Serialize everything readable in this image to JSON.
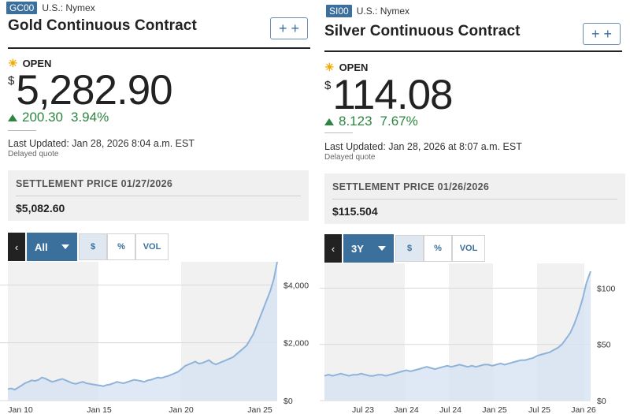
{
  "colors": {
    "accent": "#3b6f9c",
    "up": "#2e8540",
    "line": "#8fb3d9",
    "fill": "#d6e4f2",
    "band": "#f1f1f1"
  },
  "panels": [
    {
      "ticker": "GC00",
      "exchange": "U.S.: Nymex",
      "title": "Gold Continuous Contract",
      "add_button": "+ +",
      "status_icon": "sun-icon",
      "status": "OPEN",
      "currency": "$",
      "price": "5,282.90",
      "change": "200.30",
      "change_pct": "3.94%",
      "updated": "Last Updated: Jan 28, 2026 8:04 a.m. EST",
      "delayed": "Delayed quote",
      "settlement_label": "SETTLEMENT PRICE 01/27/2026",
      "settlement_value": "$5,082.60",
      "toolbar": {
        "back": "‹",
        "range": "All",
        "dollar": "$",
        "percent": "%",
        "vol": "VOL"
      },
      "chart_data": {
        "type": "area",
        "x_ticks": [
          "Jan 10",
          "Jan 15",
          "Jan 20",
          "Jan 25"
        ],
        "y_ticks": [
          "$4,000",
          "$2,000",
          "$0"
        ],
        "ylim": [
          0,
          4800
        ],
        "grid": true,
        "values": [
          400,
          420,
          380,
          450,
          520,
          600,
          650,
          700,
          680,
          720,
          800,
          760,
          700,
          650,
          680,
          720,
          750,
          700,
          650,
          600,
          580,
          620,
          650,
          600,
          580,
          560,
          540,
          520,
          500,
          540,
          560,
          600,
          650,
          620,
          600,
          640,
          680,
          720,
          700,
          680,
          650,
          700,
          720,
          760,
          800,
          780,
          820,
          850,
          900,
          950,
          1000,
          1100,
          1200,
          1250,
          1300,
          1350,
          1280,
          1300,
          1350,
          1400,
          1300,
          1250,
          1300,
          1350,
          1400,
          1450,
          1500,
          1600,
          1700,
          1800,
          1900,
          2100,
          2300,
          2600,
          2900,
          3200,
          3500,
          3800,
          4200,
          4800
        ]
      }
    },
    {
      "ticker": "SI00",
      "exchange": "U.S.: Nymex",
      "title": "Silver Continuous Contract",
      "add_button": "+ +",
      "status_icon": "sun-icon",
      "status": "OPEN",
      "currency": "$",
      "price": "114.08",
      "change": "8.123",
      "change_pct": "7.67%",
      "updated": "Last Updated: Jan 28, 2026 at 8:07 a.m. EST",
      "delayed": "Delayed quote",
      "settlement_label": "SETTLEMENT PRICE 01/26/2026",
      "settlement_value": "$115.504",
      "toolbar": {
        "back": "‹",
        "range": "3Y",
        "dollar": "$",
        "percent": "%",
        "vol": "VOL"
      },
      "chart_data": {
        "type": "area",
        "x_ticks": [
          "Jul 23",
          "Jan 24",
          "Jul 24",
          "Jan 25",
          "Jul 25",
          "Jan 26"
        ],
        "y_ticks": [
          "$100",
          "$50",
          "$0"
        ],
        "ylim": [
          0,
          115
        ],
        "grid": true,
        "values": [
          22,
          23,
          22,
          23,
          24,
          23,
          22,
          23,
          23,
          24,
          23,
          22,
          22,
          23,
          23,
          22,
          23,
          24,
          25,
          26,
          27,
          26,
          27,
          28,
          29,
          30,
          29,
          28,
          29,
          30,
          31,
          30,
          31,
          32,
          31,
          30,
          31,
          30,
          31,
          32,
          32,
          31,
          32,
          33,
          32,
          33,
          34,
          35,
          36,
          36,
          37,
          38,
          40,
          41,
          42,
          43,
          45,
          47,
          50,
          55,
          60,
          68,
          78,
          90,
          105,
          115
        ]
      }
    }
  ]
}
